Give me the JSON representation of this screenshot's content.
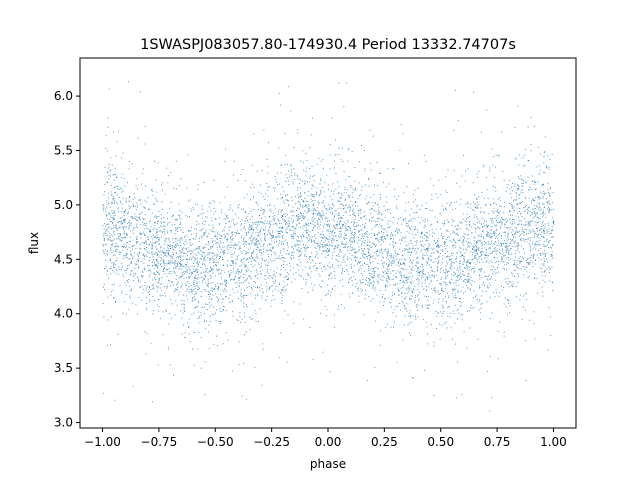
{
  "chart_data": {
    "type": "scatter",
    "title": "1SWASPJ083057.80-174930.4 Period 13332.74707s",
    "xlabel": "phase",
    "ylabel": "flux",
    "xlim": [
      -1.1,
      1.1
    ],
    "ylim": [
      2.95,
      6.35
    ],
    "xticks": [
      -1.0,
      -0.75,
      -0.5,
      -0.25,
      0.0,
      0.25,
      0.5,
      0.75,
      1.0
    ],
    "xtick_labels": [
      "−1.00",
      "−0.75",
      "−0.50",
      "−0.25",
      "0.00",
      "0.25",
      "0.50",
      "0.75",
      "1.00"
    ],
    "yticks": [
      3.0,
      3.5,
      4.0,
      4.5,
      5.0,
      5.5,
      6.0
    ],
    "ytick_labels": [
      "3.0",
      "3.5",
      "4.0",
      "4.5",
      "5.0",
      "5.5",
      "6.0"
    ],
    "marker_color": "#1f77b4",
    "grid": false,
    "series": [
      {
        "x_range": [
          -1.0,
          1.0
        ],
        "trend_phase": [
          -1.0,
          -0.9,
          -0.8,
          -0.7,
          -0.6,
          -0.5,
          -0.4,
          -0.3,
          -0.2,
          -0.1,
          0.0,
          0.1,
          0.2,
          0.3,
          0.4,
          0.5,
          0.6,
          0.7,
          0.8,
          0.9,
          1.0
        ],
        "trend_flux": [
          4.8,
          4.72,
          4.62,
          4.52,
          4.47,
          4.47,
          4.53,
          4.62,
          4.72,
          4.8,
          4.78,
          4.72,
          4.62,
          4.52,
          4.47,
          4.47,
          4.53,
          4.62,
          4.72,
          4.8,
          4.8
        ],
        "scatter_sigma": 0.28,
        "flux_range": [
          3.1,
          6.2
        ]
      }
    ]
  }
}
